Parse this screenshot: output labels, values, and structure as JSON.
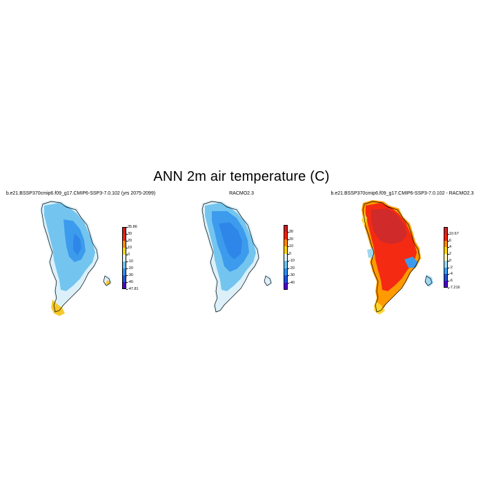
{
  "figure": {
    "title": "ANN 2m air temperature (C)"
  },
  "panels": [
    {
      "title": "b.e21.BSSP370cmip6.f09_g17.CMIP6-SSP3-7.0.102 (yrs 2075-2099)",
      "colorbar": {
        "labels": [
          "35.86",
          "30",
          "20",
          "10",
          "0",
          "-10",
          "-20",
          "-30",
          "-40",
          "-47.81"
        ],
        "colors": [
          "#d7191c",
          "#f4200a",
          "#ff8c00",
          "#ffd700",
          "#e0f3f8",
          "#6ec3f0",
          "#2e8ff0",
          "#1e50e0",
          "#5000d0"
        ]
      }
    },
    {
      "title": "RACMO2.3",
      "colorbar": {
        "labels": [
          "30",
          "20",
          "10",
          "0",
          "-10",
          "-20",
          "-30",
          "-40"
        ],
        "colors": [
          "#c82020",
          "#f4200a",
          "#ff8c00",
          "#ffd700",
          "#e0f3f8",
          "#6ec3f0",
          "#2e8ff0",
          "#1e50e0",
          "#5000d0"
        ]
      }
    },
    {
      "title": "b.e21.BSSP370cmip6.f09_g17.CMIP6-SSP3-7.0.102 - RACMO2.3",
      "colorbar": {
        "labels": [
          "10.67",
          "6",
          "4",
          "2",
          "0",
          "-2",
          "-4",
          "-6",
          "-7.216"
        ],
        "colors": [
          "#c82828",
          "#f4200a",
          "#ff8c00",
          "#ffd700",
          "#fff8c0",
          "#9ed8f0",
          "#3e9ef0",
          "#2050d0",
          "#5000d0"
        ]
      }
    }
  ]
}
